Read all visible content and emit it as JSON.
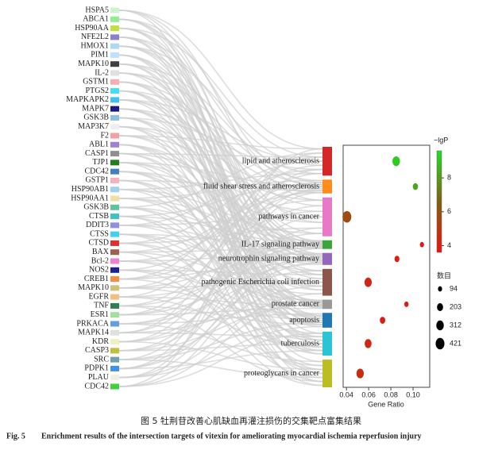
{
  "chart_data": {
    "type": "sankey-bubble",
    "genes": [
      {
        "name": "HSPA5",
        "color": "#ccf5cc"
      },
      {
        "name": "ABCA1",
        "color": "#90ee90"
      },
      {
        "name": "HSP90AA",
        "color": "#c0e040"
      },
      {
        "name": "NFE2L2",
        "color": "#8a7fd0"
      },
      {
        "name": "HMOX1",
        "color": "#b0d8f0"
      },
      {
        "name": "PIM1",
        "color": "#c0e0ff"
      },
      {
        "name": "MAPK10",
        "color": "#404040"
      },
      {
        "name": "IL-2",
        "color": "#e0e0e0"
      },
      {
        "name": "GSTM1",
        "color": "#f4b0b0"
      },
      {
        "name": "PTGS2",
        "color": "#40e0f0"
      },
      {
        "name": "MAPKAPK2",
        "color": "#40c0f0"
      },
      {
        "name": "MAPK7",
        "color": "#1a1a80"
      },
      {
        "name": "GSK3B",
        "color": "#90c0e0"
      },
      {
        "name": "MAP3K7",
        "color": "#eeeeee"
      },
      {
        "name": "F2",
        "color": "#f4a0a0"
      },
      {
        "name": "ABL1",
        "color": "#a080d0"
      },
      {
        "name": "CASP1",
        "color": "#909090"
      },
      {
        "name": "TJP1",
        "color": "#208020"
      },
      {
        "name": "CDC42",
        "color": "#4080c0"
      },
      {
        "name": "GSTP1",
        "color": "#f4b0c0"
      },
      {
        "name": "HSP90AB1",
        "color": "#a0d0f0"
      },
      {
        "name": "HSP90AA1",
        "color": "#f0e0a0"
      },
      {
        "name": "GSK3B",
        "color": "#60c0a0"
      },
      {
        "name": "CTSB",
        "color": "#40c0c0"
      },
      {
        "name": "DDIT3",
        "color": "#9090e0"
      },
      {
        "name": "CTSS",
        "color": "#40d0f0"
      },
      {
        "name": "CTSD",
        "color": "#e03030"
      },
      {
        "name": "BAX",
        "color": "#a06050"
      },
      {
        "name": "Bcl-2",
        "color": "#f080d0"
      },
      {
        "name": "NOS2",
        "color": "#202090"
      },
      {
        "name": "CREB1",
        "color": "#f09040"
      },
      {
        "name": "MAPK10",
        "color": "#d0c080"
      },
      {
        "name": "EGFR",
        "color": "#f0c080"
      },
      {
        "name": "TNF",
        "color": "#308050"
      },
      {
        "name": "ESR1",
        "color": "#a0e0a0"
      },
      {
        "name": "PRKACA",
        "color": "#60a0e0"
      },
      {
        "name": "MAPK14",
        "color": "#e0e0e0"
      },
      {
        "name": "KDR",
        "color": "#f0f0c0"
      },
      {
        "name": "CASP3",
        "color": "#c0c040"
      },
      {
        "name": "SRC",
        "color": "#70a0b0"
      },
      {
        "name": "PDPK1",
        "color": "#4090f0"
      },
      {
        "name": "PLAU",
        "color": "#f0f0e0"
      },
      {
        "name": "CDC42",
        "color": "#40d040"
      }
    ],
    "pathways": [
      {
        "name": "lipid and atherosclerosis",
        "color": "#d62728",
        "gene_ratio": 0.0848,
        "count": 312,
        "neg_log_p": 9.2
      },
      {
        "name": "fluid shear stress and atherosclerosis",
        "color": "#ff8c1a",
        "gene_ratio": 0.1021,
        "count": 150,
        "neg_log_p": 8.3
      },
      {
        "name": "pathways in cancer",
        "color": "#e879c8",
        "gene_ratio": 0.0404,
        "count": 421,
        "neg_log_p": 5.8
      },
      {
        "name": "IL-17 signaling pathway",
        "color": "#3aa63a",
        "gene_ratio": 0.108,
        "count": 94,
        "neg_log_p": 3.8
      },
      {
        "name": "neurotrophin signaling pathway",
        "color": "#9467bd",
        "gene_ratio": 0.0855,
        "count": 130,
        "neg_log_p": 4.0
      },
      {
        "name": "pathogenic Escherichia coli infection",
        "color": "#8c564b",
        "gene_ratio": 0.0595,
        "count": 290,
        "neg_log_p": 4.3
      },
      {
        "name": "prostate cancer",
        "color": "#999999",
        "gene_ratio": 0.094,
        "count": 100,
        "neg_log_p": 3.9
      },
      {
        "name": "apoptosis",
        "color": "#1f77b4",
        "gene_ratio": 0.0725,
        "count": 160,
        "neg_log_p": 4.1
      },
      {
        "name": "tuberculosis",
        "color": "#2bc4d4",
        "gene_ratio": 0.0595,
        "count": 260,
        "neg_log_p": 4.4
      },
      {
        "name": "proteoglycans in cancer",
        "color": "#bcbd22",
        "gene_ratio": 0.0523,
        "count": 300,
        "neg_log_p": 4.6
      }
    ],
    "xlabel": "Gene Ratio",
    "xlim": [
      0.037,
      0.115
    ],
    "xticks": [
      0.04,
      0.06,
      0.08,
      0.1
    ],
    "color_title": "−lgP",
    "clim": [
      3.6,
      9.6
    ],
    "cticks": [
      4,
      6,
      8
    ],
    "colormap": [
      "#ee1111",
      "#806010",
      "#22dd22"
    ],
    "size_title": "数目",
    "size_legend": [
      94,
      203,
      312,
      421
    ],
    "caption_cn": "图 5   牡荆苷改善心肌缺血再灌注损伤的交集靶点富集结果",
    "caption_en_label": "Fig. 5",
    "caption_en": "Enrichment results of the intersection targets of vitexin for ameliorating myocardial ischemia reperfusion injury"
  }
}
